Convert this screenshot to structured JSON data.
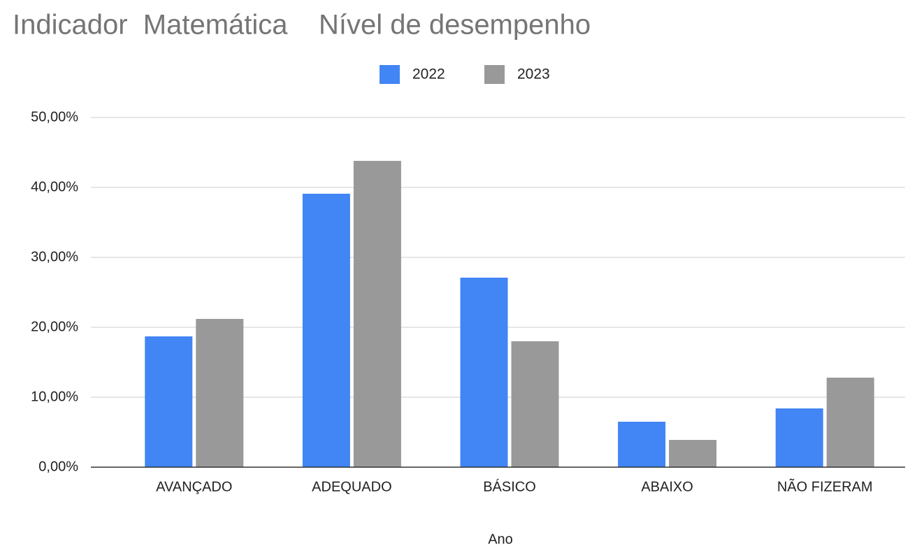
{
  "chart_data": {
    "type": "bar",
    "title": "Indicador  Matemática    Nível de desempenho",
    "x_label": "Ano",
    "categories": [
      "AVANÇADO",
      "ADEQUADO",
      "BÁSICO",
      "ABAIXO",
      "NÃO FIZERAM"
    ],
    "series": [
      {
        "name": "2022",
        "color": "#4285f4",
        "values": [
          18.7,
          39.1,
          27.1,
          6.5,
          8.4
        ]
      },
      {
        "name": "2023",
        "color": "#999999",
        "values": [
          21.2,
          43.8,
          18.0,
          3.9,
          12.8
        ]
      }
    ],
    "ylim": [
      0,
      50
    ],
    "yticks": [
      {
        "value": 0,
        "label": "0,00%"
      },
      {
        "value": 10,
        "label": "10,00%"
      },
      {
        "value": 20,
        "label": "20,00%"
      },
      {
        "value": 30,
        "label": "30,00%"
      },
      {
        "value": 40,
        "label": "40,00%"
      },
      {
        "value": 50,
        "label": "50,00%"
      }
    ],
    "grid": true,
    "legend": "top"
  }
}
